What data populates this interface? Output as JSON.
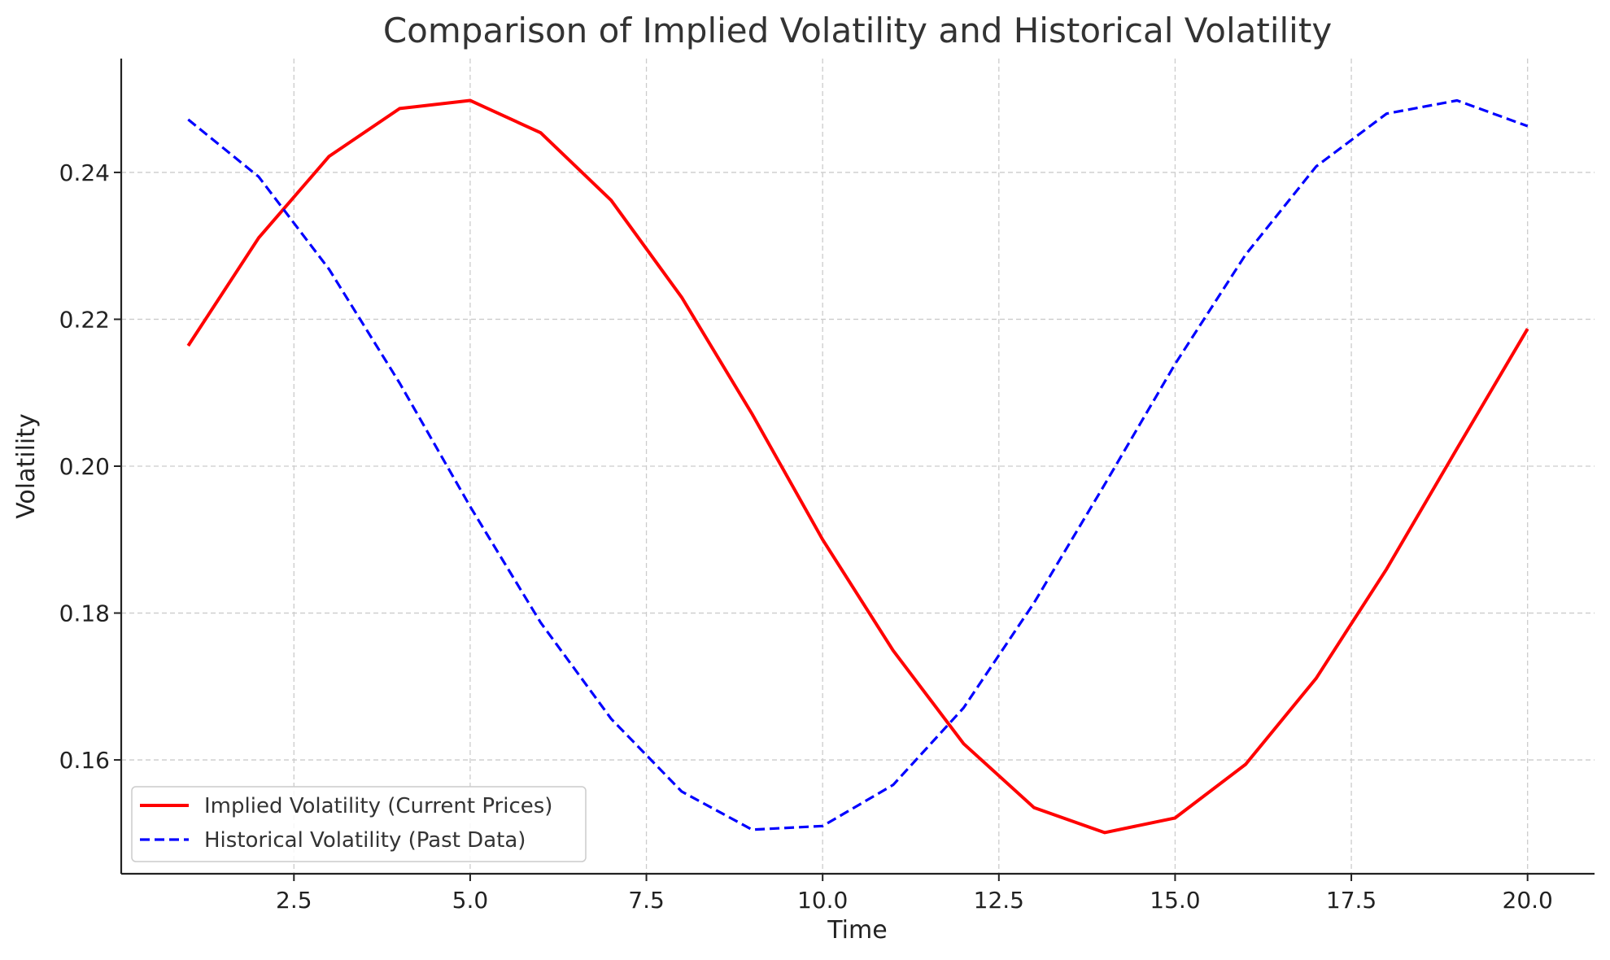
{
  "chart_data": {
    "type": "line",
    "title": "Comparison of Implied Volatility and Historical Volatility",
    "xlabel": "Time",
    "ylabel": "Volatility",
    "xlim": [
      0.05,
      20.95
    ],
    "ylim": [
      0.1445,
      0.2555
    ],
    "x_ticks": [
      2.5,
      5.0,
      7.5,
      10.0,
      12.5,
      15.0,
      17.5,
      20.0
    ],
    "x_tick_labels": [
      "2.5",
      "5.0",
      "7.5",
      "10.0",
      "12.5",
      "15.0",
      "17.5",
      "20.0"
    ],
    "y_ticks": [
      0.16,
      0.18,
      0.2,
      0.22,
      0.24
    ],
    "y_tick_labels": [
      "0.16",
      "0.18",
      "0.20",
      "0.22",
      "0.24"
    ],
    "grid": true,
    "legend_position": "lower-left",
    "x": [
      1,
      2,
      3,
      4,
      5,
      6,
      7,
      8,
      9,
      10,
      11,
      12,
      13,
      14,
      15,
      16,
      17,
      18,
      19,
      20
    ],
    "series": [
      {
        "name": "Implied Volatility (Current Prices)",
        "color": "#ff0000",
        "style": "solid",
        "values": [
          0.2164,
          0.2311,
          0.2422,
          0.2487,
          0.2498,
          0.2454,
          0.2362,
          0.223,
          0.2071,
          0.19,
          0.1749,
          0.1622,
          0.1535,
          0.1501,
          0.1521,
          0.1594,
          0.1711,
          0.186,
          0.2024,
          0.2187
        ]
      },
      {
        "name": "Historical Volatility (Past Data)",
        "color": "#0000ff",
        "style": "dashed",
        "values": [
          0.2472,
          0.2394,
          0.2268,
          0.2113,
          0.1945,
          0.1787,
          0.1656,
          0.1557,
          0.1505,
          0.151,
          0.1566,
          0.1671,
          0.1814,
          0.1975,
          0.2139,
          0.2288,
          0.2408,
          0.248,
          0.2498,
          0.2463
        ]
      }
    ]
  }
}
